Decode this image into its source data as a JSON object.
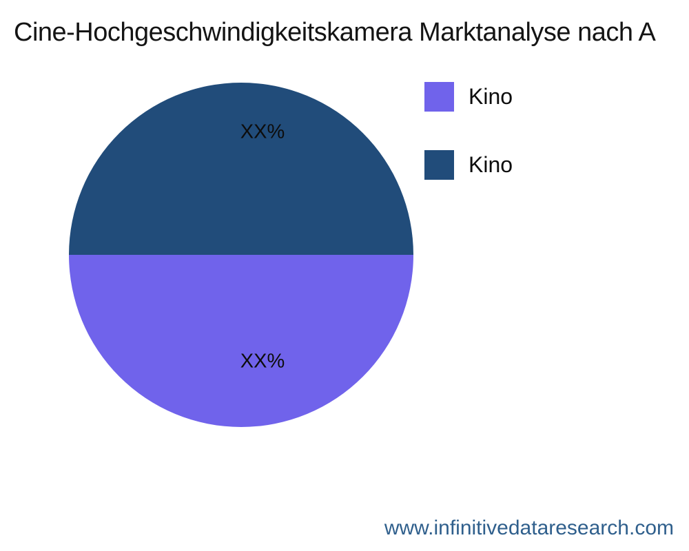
{
  "title": "Cine-Hochgeschwindigkeitskamera Marktanalyse nach A",
  "chart_data": {
    "type": "pie",
    "title": "Cine-Hochgeschwindigkeitskamera Marktanalyse nach A",
    "slices": [
      {
        "legend_label": "Kino",
        "data_label": "XX%",
        "color": "#7063EB",
        "value_pct": 50,
        "position": "bottom-half"
      },
      {
        "legend_label": "Kino",
        "data_label": "XX%",
        "color": "#214C7A",
        "value_pct": 50,
        "position": "top-half"
      }
    ],
    "legend_position": "right",
    "data_label_color": "#0d0d0d",
    "background_color": "#ffffff"
  },
  "footer": {
    "url": "www.infinitivedataresearch.com",
    "color": "#2F5F8C"
  }
}
